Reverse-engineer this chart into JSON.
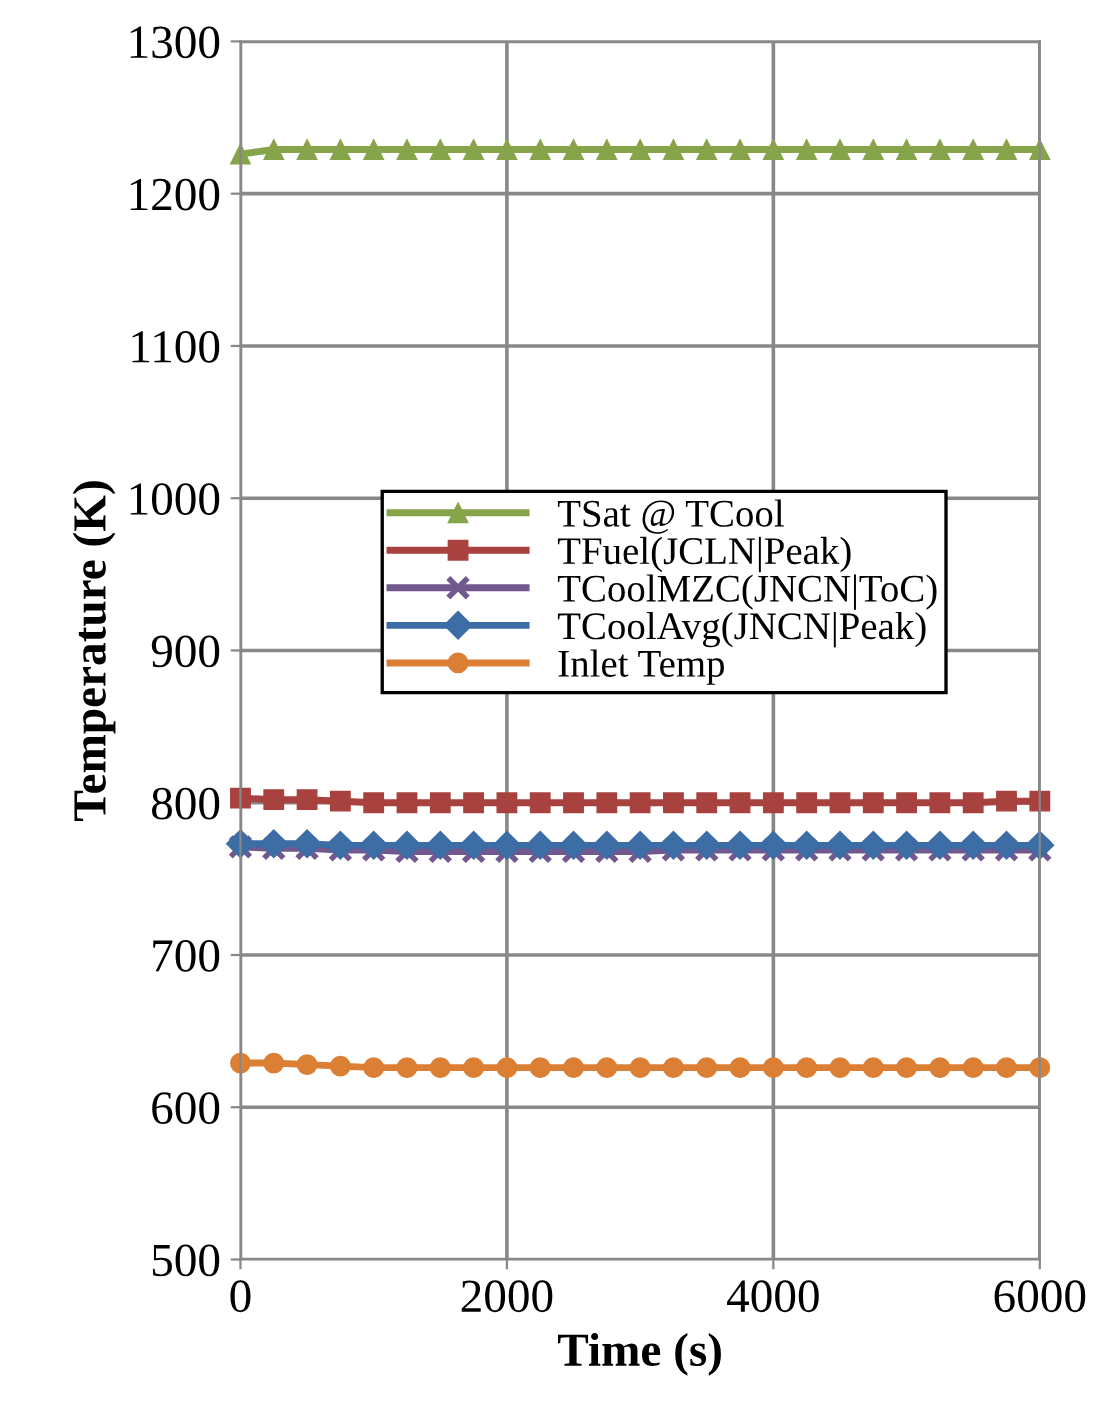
{
  "chart_data": {
    "type": "line",
    "xlabel": "Time (s)",
    "ylabel": "Temperature (K)",
    "x": [
      0,
      250,
      500,
      750,
      1000,
      1250,
      1500,
      1750,
      2000,
      2250,
      2500,
      2750,
      3000,
      3250,
      3500,
      3750,
      4000,
      4250,
      4500,
      4750,
      5000,
      5250,
      5500,
      5750,
      6000
    ],
    "series": [
      {
        "name": "TSat @ TCool",
        "color": "#86a44a",
        "marker": "triangle",
        "values": [
          1226,
          1229,
          1229,
          1229,
          1229,
          1229,
          1229,
          1229,
          1229,
          1229,
          1229,
          1229,
          1229,
          1229,
          1229,
          1229,
          1229,
          1229,
          1229,
          1229,
          1229,
          1229,
          1229,
          1229,
          1229
        ]
      },
      {
        "name": "TFuel(JCLN|Peak)",
        "color": "#a8423f",
        "marker": "square",
        "values": [
          803,
          802,
          802,
          801,
          800,
          800,
          800,
          800,
          800,
          800,
          800,
          800,
          800,
          800,
          800,
          800,
          800,
          800,
          800,
          800,
          800,
          800,
          800,
          801,
          801
        ]
      },
      {
        "name": "TCoolMZC(JNCN|ToC)",
        "color": "#71588f",
        "marker": "cross",
        "values": [
          771,
          770,
          770,
          769,
          769,
          768,
          768,
          768,
          768,
          768,
          768,
          768,
          768,
          769,
          769,
          769,
          769,
          769,
          769,
          769,
          769,
          769,
          769,
          769,
          769
        ]
      },
      {
        "name": "TCoolAvg(JNCN|Peak)",
        "color": "#3d6da5",
        "marker": "diamond",
        "values": [
          773,
          773,
          773,
          772,
          772,
          772,
          772,
          772,
          772,
          772,
          772,
          772,
          772,
          772,
          772,
          772,
          772,
          772,
          772,
          772,
          772,
          772,
          772,
          772,
          772
        ]
      },
      {
        "name": "Inlet Temp",
        "color": "#db7f35",
        "marker": "circle",
        "values": [
          629,
          629,
          628,
          627,
          626,
          626,
          626,
          626,
          626,
          626,
          626,
          626,
          626,
          626,
          626,
          626,
          626,
          626,
          626,
          626,
          626,
          626,
          626,
          626,
          626
        ]
      }
    ],
    "xlim": [
      0,
      6000
    ],
    "xticks": [
      0,
      2000,
      4000,
      6000
    ],
    "ylim": [
      500,
      1300
    ],
    "yticks": [
      500,
      600,
      700,
      800,
      900,
      1000,
      1100,
      1200,
      1300
    ],
    "grid": true,
    "legend": "center",
    "line_style": "solid"
  }
}
